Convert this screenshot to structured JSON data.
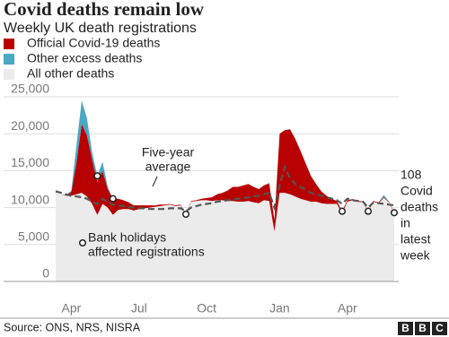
{
  "chart_data": {
    "type": "stacked-area",
    "title": "Covid deaths remain low",
    "subtitle": "Weekly UK death registrations",
    "categories": [
      null,
      null,
      null,
      "Apr",
      null,
      null,
      null,
      null,
      null,
      null,
      null,
      null,
      null,
      null,
      null,
      null,
      "Jul",
      null,
      null,
      null,
      null,
      null,
      null,
      null,
      null,
      null,
      null,
      null,
      null,
      "Oct",
      null,
      null,
      null,
      null,
      null,
      null,
      null,
      null,
      null,
      null,
      null,
      null,
      null,
      "Jan",
      null,
      null,
      null,
      null,
      null,
      null,
      null,
      null,
      null,
      null,
      null,
      null,
      "Apr",
      null,
      null,
      null,
      null,
      null,
      null,
      null,
      null,
      null
    ],
    "series": [
      {
        "name": "Official Covid-19 deaths",
        "color": "#b80000",
        "values": [
          0,
          0,
          100,
          500,
          4300,
          9300,
          8300,
          6000,
          4500,
          4500,
          2500,
          2200,
          1500,
          1200,
          900,
          700,
          500,
          400,
          300,
          200,
          200,
          100,
          100,
          100,
          100,
          100,
          100,
          100,
          200,
          300,
          500,
          800,
          1000,
          1400,
          1900,
          2000,
          2200,
          2300,
          2100,
          1900,
          2000,
          2400,
          1500,
          8000,
          8500,
          8800,
          7800,
          6500,
          5000,
          3500,
          2400,
          1600,
          1100,
          700,
          400,
          300,
          200,
          150,
          120,
          110,
          100,
          100,
          100,
          110,
          100,
          108
        ]
      },
      {
        "name": "Other excess deaths",
        "color": "#4aa8c3",
        "values": [
          0,
          0,
          0,
          200,
          2400,
          3200,
          2300,
          1000,
          800,
          1200,
          300,
          0,
          0,
          0,
          0,
          0,
          0,
          0,
          0,
          0,
          0,
          0,
          0,
          0,
          0,
          0,
          0,
          0,
          0,
          0,
          0,
          0,
          0,
          0,
          0,
          0,
          0,
          0,
          0,
          0,
          0,
          0,
          0,
          0,
          0,
          0,
          0,
          0,
          0,
          0,
          0,
          0,
          0,
          0,
          0,
          0,
          0,
          0,
          0,
          0,
          0,
          0,
          0,
          300,
          0,
          0
        ]
      },
      {
        "name": "All other deaths",
        "color": "#ebebeb",
        "values": [
          12700,
          11800,
          11600,
          11600,
          11800,
          12000,
          11500,
          10500,
          9000,
          10500,
          10000,
          9000,
          9700,
          9800,
          9800,
          9600,
          9800,
          9900,
          10000,
          10100,
          10200,
          10300,
          10400,
          10200,
          10300,
          9000,
          10800,
          10900,
          11000,
          11000,
          10900,
          11000,
          11000,
          10900,
          10900,
          10800,
          10800,
          10900,
          10700,
          10600,
          11000,
          10900,
          6800,
          12000,
          12000,
          11800,
          11500,
          11200,
          11000,
          10800,
          10800,
          10600,
          10500,
          10500,
          10500,
          9200,
          10800,
          11000,
          10800,
          10700,
          9400,
          10800,
          10600,
          11300,
          10700,
          9200
        ]
      }
    ],
    "average": {
      "color": "#555555",
      "values": [
        12200,
        12000,
        11800,
        11600,
        11500,
        11400,
        11200,
        10800,
        10500,
        11200,
        10700,
        10400,
        10300,
        10200,
        10100,
        10000,
        9900,
        9900,
        9800,
        9800,
        9800,
        9800,
        9900,
        9900,
        9900,
        9500,
        10000,
        10200,
        10400,
        10500,
        10600,
        10800,
        10900,
        11000,
        11100,
        11200,
        11300,
        11400,
        11500,
        11600,
        11800,
        12000,
        10000,
        13000,
        15500,
        14000,
        13200,
        12800,
        12400,
        12000,
        11800,
        11600,
        11400,
        11200,
        11000,
        10500,
        11200,
        11000,
        10900,
        10800,
        10000,
        10700,
        10600,
        10500,
        10400,
        10300
      ]
    },
    "ylim": [
      0,
      25000
    ],
    "yticks": [
      0,
      {
        "value": 5000,
        "label": "5,000"
      },
      {
        "value": 10000,
        "label": "10,000"
      },
      {
        "value": 15000,
        "label": "15,000"
      },
      {
        "value": 20000,
        "label": "20,000"
      },
      {
        "value": 25000,
        "label": "25,000"
      }
    ],
    "grid": true,
    "annotations": [
      {
        "lines": [
          "Five-year",
          "average"
        ]
      },
      {
        "lines": [
          "Bank holidays",
          "affected registrations"
        ]
      },
      {
        "lines": [
          "108",
          "Covid",
          "deaths",
          "in",
          "latest",
          "week"
        ]
      }
    ],
    "source": "Source: ONS, NRS, NISRA",
    "logo": [
      "B",
      "B",
      "C"
    ]
  }
}
